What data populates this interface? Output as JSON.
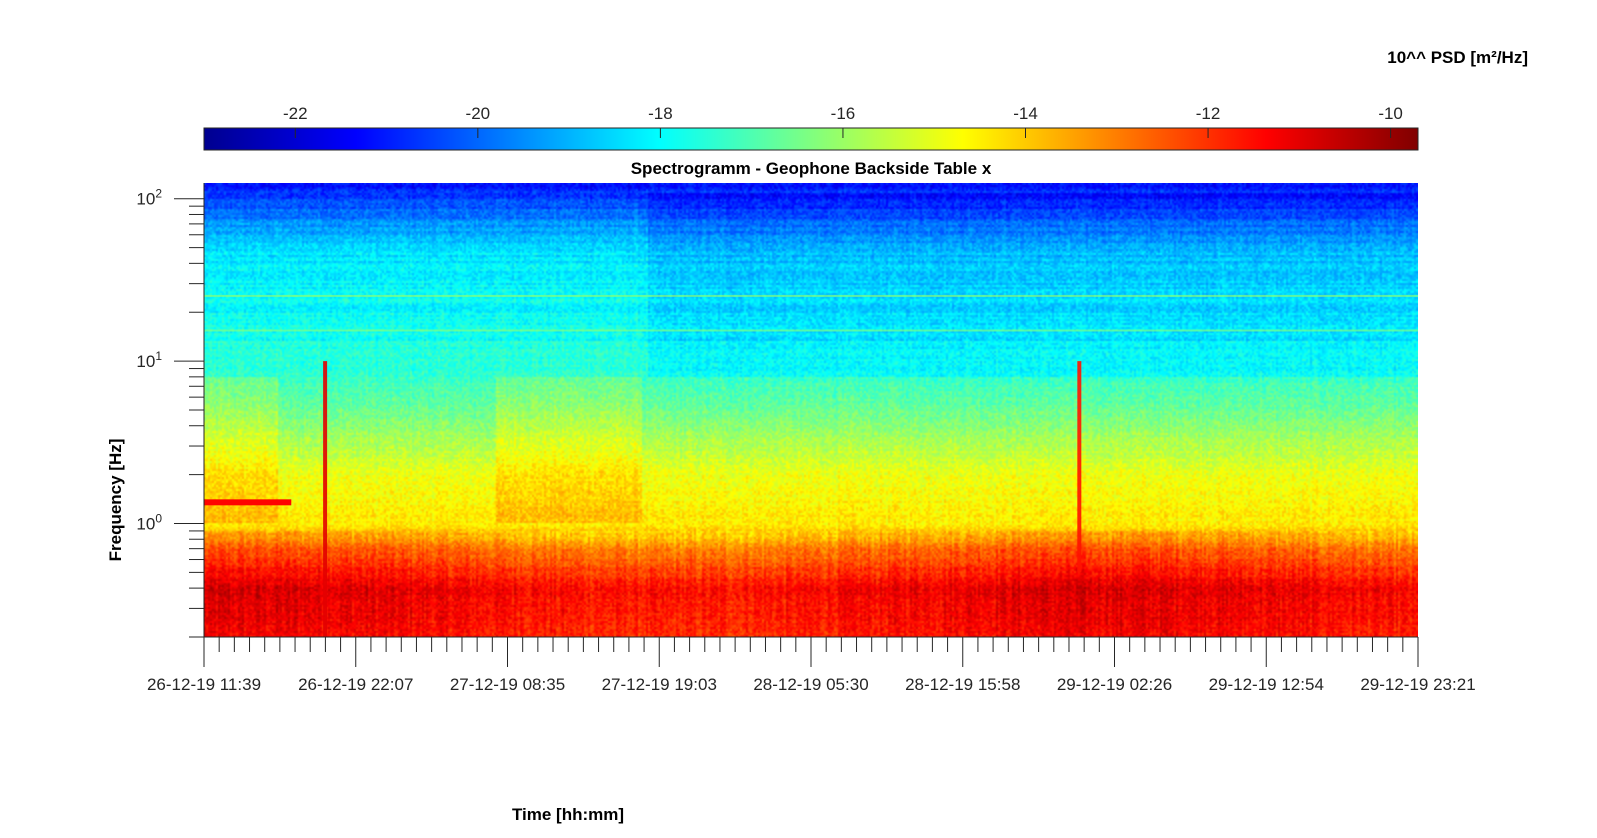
{
  "chart_data": {
    "type": "heatmap",
    "title": "Spectrogramm - Geophone Backside Table x",
    "xlabel": "Time [hh:mm]",
    "ylabel": "Frequency [Hz]",
    "colorbar": {
      "label": "10^^ PSD [m²/Hz]",
      "range": [
        -23,
        -9.7
      ],
      "ticks": [
        -22,
        -20,
        -18,
        -16,
        -14,
        -12,
        -10
      ],
      "tick_labels": [
        "-22",
        "-20",
        "-18",
        "-16",
        "-14",
        "-12",
        "-10"
      ],
      "colormap": "jet",
      "location": "top"
    },
    "x_ticks": [
      "26-12-19 11:39",
      "26-12-19 22:07",
      "27-12-19 08:35",
      "27-12-19 19:03",
      "28-12-19 05:30",
      "28-12-19 15:58",
      "29-12-19 02:26",
      "29-12-19 12:54",
      "29-12-19 23:21"
    ],
    "xlim": [
      "26-12-19 11:39",
      "29-12-19 23:21"
    ],
    "y_scale": "log",
    "ylim": [
      0.2,
      125
    ],
    "y_ticks": [
      1,
      10,
      100
    ],
    "y_tick_labels": [
      {
        "base": "10",
        "exp": "0"
      },
      {
        "base": "10",
        "exp": "1"
      },
      {
        "base": "10",
        "exp": "2"
      }
    ],
    "grid": false,
    "psd_profile": [
      {
        "freq": 0.2,
        "value": -11.6
      },
      {
        "freq": 0.4,
        "value": -11.2
      },
      {
        "freq": 0.7,
        "value": -12.8
      },
      {
        "freq": 1.0,
        "value": -14.4
      },
      {
        "freq": 2.0,
        "value": -14.9
      },
      {
        "freq": 5.0,
        "value": -16.6
      },
      {
        "freq": 10.0,
        "value": -17.6
      },
      {
        "freq": 20.0,
        "value": -17.9
      },
      {
        "freq": 50.0,
        "value": -18.4
      },
      {
        "freq": 100.0,
        "value": -20.6
      },
      {
        "freq": 125.0,
        "value": -21.2
      }
    ],
    "features": [
      {
        "type": "tone",
        "time_start": "26-12-19 11:39",
        "time_end": "26-12-19 17:40",
        "freq": 1.35,
        "value": -11.4
      },
      {
        "type": "transient",
        "time": "26-12-19 20:00",
        "freq_min": 0.2,
        "freq_max": 10,
        "value": -11.0
      },
      {
        "type": "transient",
        "time": "29-12-19 00:00",
        "freq_min": 0.5,
        "freq_max": 10,
        "value": -11.6
      },
      {
        "type": "tone",
        "time_start": "26-12-19 11:39",
        "time_end": "29-12-19 23:21",
        "freq": 24.5,
        "value": -16.0
      },
      {
        "type": "tone",
        "time_start": "26-12-19 11:39",
        "time_end": "29-12-19 23:21",
        "freq": 15.0,
        "value": -16.2
      }
    ]
  }
}
